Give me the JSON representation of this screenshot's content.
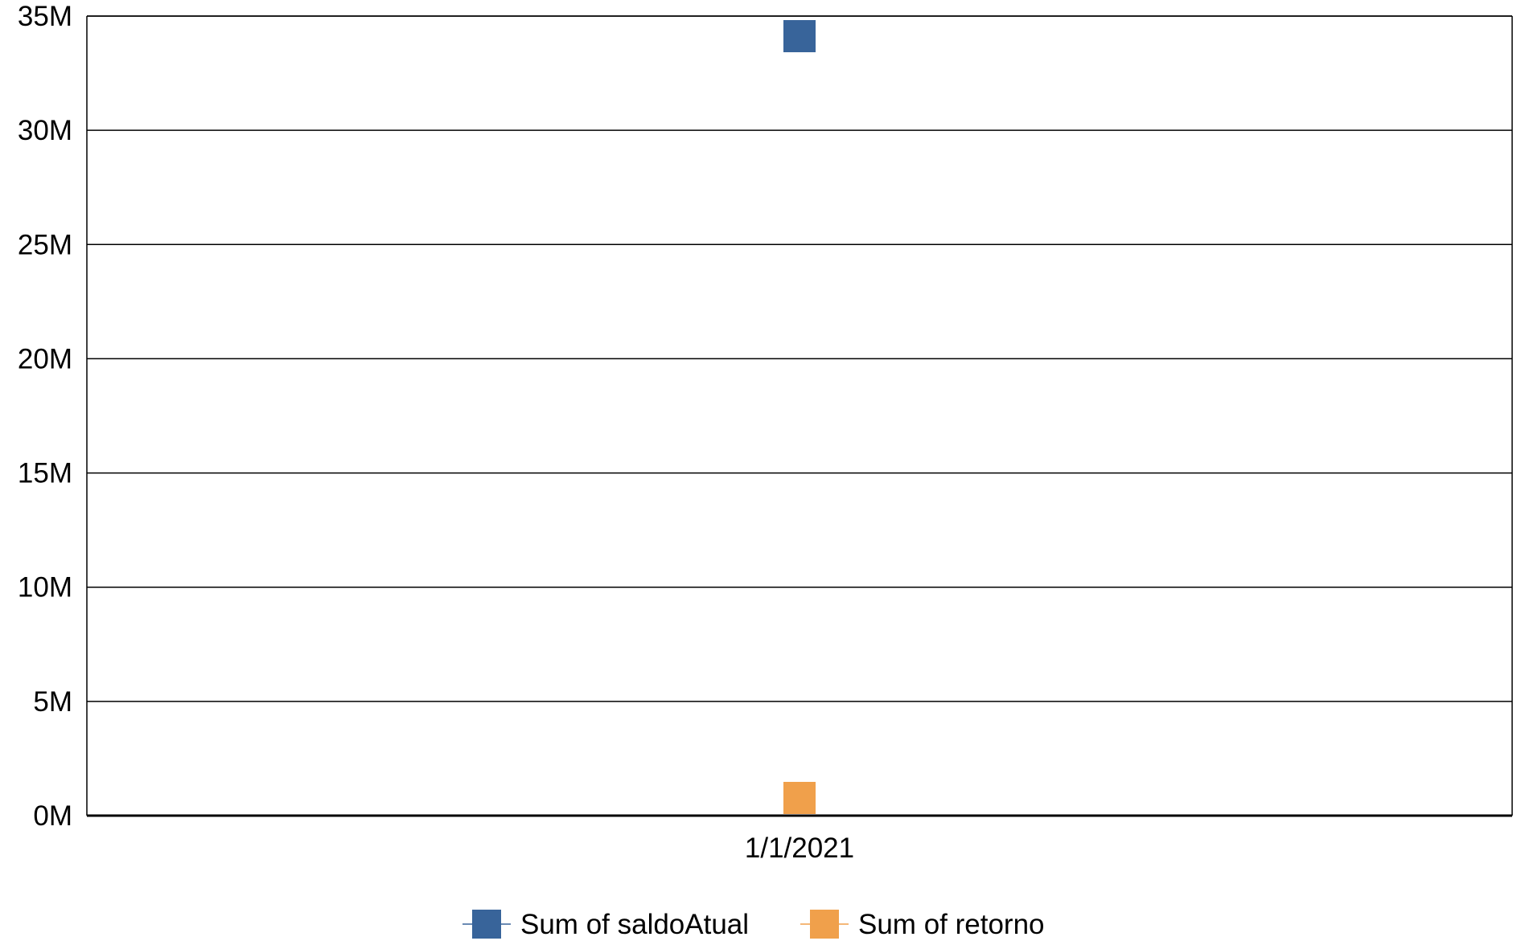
{
  "chart_data": {
    "type": "line",
    "x": [
      "1/1/2021"
    ],
    "series": [
      {
        "name": "Sum of saldoAtual",
        "values": [
          34200000
        ],
        "color": "#38649a",
        "marker": "square"
      },
      {
        "name": "Sum of retorno",
        "values": [
          400000
        ],
        "color": "#f0a04b",
        "marker": "square"
      }
    ],
    "ylim": [
      0,
      35000000
    ],
    "yticks": [
      {
        "value": 0,
        "label": "0M"
      },
      {
        "value": 5000000,
        "label": "5M"
      },
      {
        "value": 10000000,
        "label": "10M"
      },
      {
        "value": 15000000,
        "label": "15M"
      },
      {
        "value": 20000000,
        "label": "20M"
      },
      {
        "value": 25000000,
        "label": "25M"
      },
      {
        "value": 30000000,
        "label": "30M"
      },
      {
        "value": 35000000,
        "label": "35M"
      }
    ],
    "grid": true,
    "legend": "bottom",
    "title": "",
    "xlabel": "",
    "ylabel": ""
  }
}
